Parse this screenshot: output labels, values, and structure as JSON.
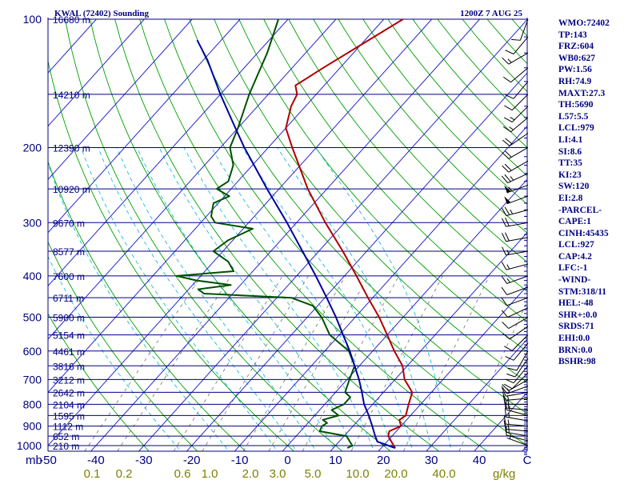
{
  "header": {
    "station": "KWAL (72402) Sounding",
    "datetime": "1200Z  7 AUG 25"
  },
  "params": [
    "WMO:72402",
    "TP:143",
    "FRZ:604",
    "WB0:627",
    "PW:1.56",
    "RH:74.9",
    "MAXT:27.3",
    "TH:5690",
    "L57:5.5",
    "LCL:979",
    "LI:4.1",
    "SI:8.6",
    "TT:35",
    "KI:23",
    "SW:120",
    "EI:2.8",
    "-PARCEL-",
    "CAPE:1",
    "CINH:45435",
    "LCL:927",
    "CAP:4.2",
    "LFC:-1",
    "-WIND-",
    "STM:318/11",
    "HEL:-48",
    "SHR+:0.0",
    "SRDS:71",
    "EHI:0.0",
    "BRN:0.0",
    "BSHR:98"
  ],
  "chart_data": {
    "type": "skew-t",
    "y_axis": {
      "label": "mb",
      "scale": "log",
      "range_hpa": [
        1000,
        100
      ]
    },
    "x_axis": {
      "label": "C",
      "range_c": [
        -50,
        50
      ],
      "ticks": [
        "-50",
        "-40",
        "-30",
        "-20",
        "-10",
        "0",
        "10",
        "20",
        "30",
        "40"
      ]
    },
    "mixing_ratio_axis": {
      "label": "g/kg",
      "ticks": [
        "0.1",
        "0.2",
        "0.6",
        "1.0",
        "2.0",
        "3.0",
        "5.0",
        "10.0",
        "20.0",
        "40.0"
      ]
    },
    "pressure_labels": [
      "100",
      "200",
      "300",
      "400",
      "500",
      "600",
      "700",
      "800",
      "900",
      "1000"
    ],
    "height_labels": [
      {
        "p": 100,
        "text": "16680 m"
      },
      {
        "p": 150,
        "text": "14210 m"
      },
      {
        "p": 200,
        "text": "12390 m"
      },
      {
        "p": 250,
        "text": "10920 m"
      },
      {
        "p": 300,
        "text": "9670 m"
      },
      {
        "p": 350,
        "text": "8577 m"
      },
      {
        "p": 400,
        "text": "7600 m"
      },
      {
        "p": 450,
        "text": "6711 m"
      },
      {
        "p": 500,
        "text": "5900 m"
      },
      {
        "p": 550,
        "text": "5154 m"
      },
      {
        "p": 600,
        "text": "4461 m"
      },
      {
        "p": 650,
        "text": "3816 m"
      },
      {
        "p": 700,
        "text": "3212 m"
      },
      {
        "p": 750,
        "text": "2642 m"
      },
      {
        "p": 800,
        "text": "2104 m"
      },
      {
        "p": 850,
        "text": "1595 m"
      },
      {
        "p": 900,
        "text": "1112 m"
      },
      {
        "p": 950,
        "text": "652 m"
      },
      {
        "p": 1000,
        "text": "210 m"
      }
    ],
    "series": [
      {
        "color": "#b00000",
        "points": [
          [
            1013,
            22.9
          ],
          [
            950,
            19.2
          ],
          [
            925,
            18.5
          ],
          [
            900,
            20.0
          ],
          [
            870,
            18.5
          ],
          [
            850,
            19.0
          ],
          [
            800,
            17.5
          ],
          [
            750,
            16.0
          ],
          [
            700,
            12.0
          ],
          [
            650,
            9.0
          ],
          [
            600,
            4.5
          ],
          [
            550,
            0.0
          ],
          [
            500,
            -5.0
          ],
          [
            450,
            -11.0
          ],
          [
            400,
            -17.5
          ],
          [
            350,
            -25.0
          ],
          [
            300,
            -34.0
          ],
          [
            250,
            -44.0
          ],
          [
            200,
            -55.0
          ],
          [
            180,
            -60.0
          ],
          [
            160,
            -63.0
          ],
          [
            150,
            -64.0
          ],
          [
            143,
            -66.0
          ],
          [
            130,
            -63.5
          ],
          [
            115,
            -60.0
          ],
          [
            100,
            -56.0
          ]
        ]
      },
      {
        "color": "#005000",
        "points": [
          [
            1013,
            12.9
          ],
          [
            1000,
            13.5
          ],
          [
            950,
            10.5
          ],
          [
            925,
            4.0
          ],
          [
            900,
            3.5
          ],
          [
            885,
            4.0
          ],
          [
            870,
            2.5
          ],
          [
            850,
            5.0
          ],
          [
            825,
            2.5
          ],
          [
            800,
            4.0
          ],
          [
            770,
            4.0
          ],
          [
            750,
            2.0
          ],
          [
            700,
            0.5
          ],
          [
            650,
            -1.0
          ],
          [
            600,
            -5.0
          ],
          [
            550,
            -12.0
          ],
          [
            500,
            -17.0
          ],
          [
            470,
            -21.0
          ],
          [
            450,
            -27.0
          ],
          [
            440,
            -46.0
          ],
          [
            430,
            -48.0
          ],
          [
            420,
            -42.0
          ],
          [
            410,
            -50.0
          ],
          [
            400,
            -55.0
          ],
          [
            390,
            -44.0
          ],
          [
            370,
            -47.0
          ],
          [
            350,
            -52.0
          ],
          [
            330,
            -51.0
          ],
          [
            310,
            -48.0
          ],
          [
            300,
            -57.0
          ],
          [
            290,
            -59.0
          ],
          [
            280,
            -60.0
          ],
          [
            270,
            -61.0
          ],
          [
            260,
            -59.0
          ],
          [
            250,
            -63.0
          ],
          [
            240,
            -62.0
          ],
          [
            220,
            -64.0
          ],
          [
            200,
            -68.0
          ],
          [
            180,
            -70.0
          ],
          [
            150,
            -74.0
          ],
          [
            120,
            -78.0
          ],
          [
            100,
            -82.0
          ]
        ]
      },
      {
        "color": "#0000a0",
        "points": [
          [
            1013,
            22.9
          ],
          [
            979,
            18.0
          ],
          [
            950,
            16.5
          ],
          [
            900,
            14.0
          ],
          [
            850,
            11.3
          ],
          [
            800,
            8.2
          ],
          [
            750,
            5.5
          ],
          [
            700,
            2.5
          ],
          [
            650,
            -1.0
          ],
          [
            600,
            -4.8
          ],
          [
            550,
            -9.2
          ],
          [
            500,
            -14.0
          ],
          [
            450,
            -19.6
          ],
          [
            400,
            -26.0
          ],
          [
            350,
            -33.4
          ],
          [
            300,
            -42.0
          ],
          [
            250,
            -52.5
          ],
          [
            200,
            -65.0
          ],
          [
            175,
            -72.0
          ],
          [
            150,
            -80.0
          ],
          [
            125,
            -89.0
          ],
          [
            112,
            -95.0
          ]
        ]
      }
    ],
    "winds": [
      {
        "p": 1000,
        "dir": 110,
        "spd": 5
      },
      {
        "p": 975,
        "dir": 105,
        "spd": 10
      },
      {
        "p": 950,
        "dir": 100,
        "spd": 15
      },
      {
        "p": 925,
        "dir": 95,
        "spd": 15
      },
      {
        "p": 900,
        "dir": 95,
        "spd": 15
      },
      {
        "p": 875,
        "dir": 100,
        "spd": 15
      },
      {
        "p": 850,
        "dir": 105,
        "spd": 15
      },
      {
        "p": 825,
        "dir": 95,
        "spd": 15
      },
      {
        "p": 800,
        "dir": 90,
        "spd": 15
      },
      {
        "p": 775,
        "dir": 85,
        "spd": 15
      },
      {
        "p": 750,
        "dir": 80,
        "spd": 10
      },
      {
        "p": 725,
        "dir": 70,
        "spd": 15
      },
      {
        "p": 700,
        "dir": 60,
        "spd": 10
      },
      {
        "p": 675,
        "dir": 45,
        "spd": 10
      },
      {
        "p": 650,
        "dir": 40,
        "spd": 10
      },
      {
        "p": 625,
        "dir": 35,
        "spd": 10
      },
      {
        "p": 600,
        "dir": 30,
        "spd": 10
      },
      {
        "p": 575,
        "dir": 40,
        "spd": 10
      },
      {
        "p": 550,
        "dir": 45,
        "spd": 10
      },
      {
        "p": 525,
        "dir": 55,
        "spd": 10
      },
      {
        "p": 500,
        "dir": 60,
        "spd": 10
      },
      {
        "p": 475,
        "dir": 65,
        "spd": 10
      },
      {
        "p": 450,
        "dir": 70,
        "spd": 10
      },
      {
        "p": 425,
        "dir": 70,
        "spd": 10
      },
      {
        "p": 400,
        "dir": 70,
        "spd": 15
      },
      {
        "p": 375,
        "dir": 75,
        "spd": 15
      },
      {
        "p": 350,
        "dir": 80,
        "spd": 15
      },
      {
        "p": 325,
        "dir": 80,
        "spd": 20
      },
      {
        "p": 300,
        "dir": 80,
        "spd": 20
      },
      {
        "p": 280,
        "dir": 75,
        "spd": 25
      },
      {
        "p": 260,
        "dir": 70,
        "spd": 50
      },
      {
        "p": 245,
        "dir": 70,
        "spd": 55
      },
      {
        "p": 230,
        "dir": 65,
        "spd": 25
      },
      {
        "p": 215,
        "dir": 60,
        "spd": 20
      },
      {
        "p": 200,
        "dir": 60,
        "spd": 20
      },
      {
        "p": 185,
        "dir": 55,
        "spd": 20
      },
      {
        "p": 170,
        "dir": 50,
        "spd": 15
      },
      {
        "p": 160,
        "dir": 45,
        "spd": 15
      },
      {
        "p": 150,
        "dir": 45,
        "spd": 10
      },
      {
        "p": 140,
        "dir": 40,
        "spd": 10
      },
      {
        "p": 130,
        "dir": 50,
        "spd": 10
      },
      {
        "p": 120,
        "dir": 60,
        "spd": 15
      },
      {
        "p": 110,
        "dir": 40,
        "spd": 10
      },
      {
        "p": 100,
        "dir": 20,
        "spd": 10
      }
    ],
    "legend": "none"
  }
}
